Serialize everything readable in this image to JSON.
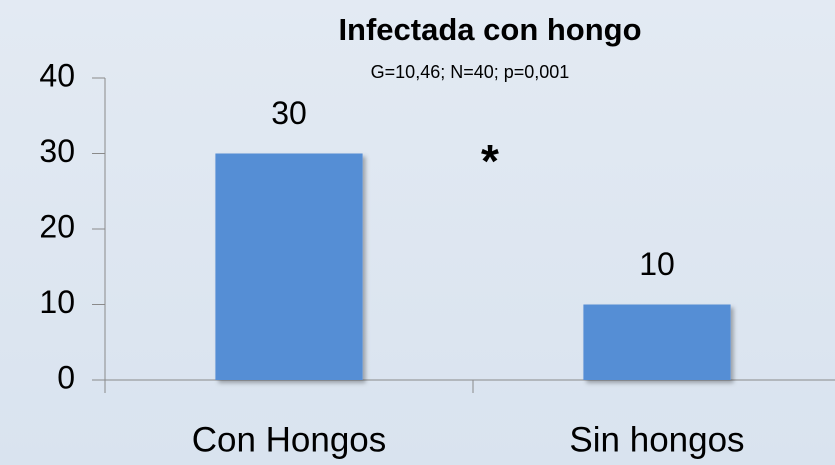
{
  "chart_data": {
    "type": "bar",
    "title": "Infectada con hongo",
    "subtitle": "G=10,46; N=40; p=0,001",
    "annotation": "*",
    "categories": [
      "Con Hongos",
      "Sin hongos"
    ],
    "values": [
      30,
      10
    ],
    "color": "#558ed5",
    "ylim": [
      0,
      40
    ],
    "yticks": [
      0,
      10,
      20,
      30,
      40
    ]
  }
}
